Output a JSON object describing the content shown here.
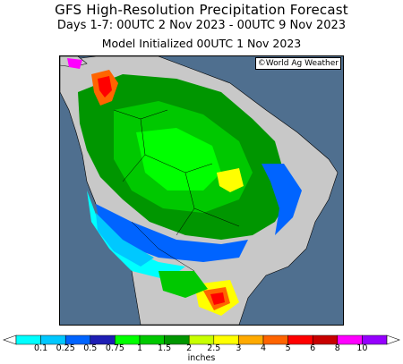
{
  "header": {
    "title": "GFS High-Resolution Precipitation Forecast",
    "subtitle": "Days 1-7: 00UTC 2 Nov 2023 - 00UTC 9 Nov 2023",
    "init": "Model Initialized 00UTC 1 Nov 2023"
  },
  "map": {
    "credit": "©World Ag Weather",
    "ocean_color": "#4f6f8f",
    "land_dry_color": "#c8c8c8",
    "border_color": "#000000"
  },
  "legend": {
    "units": "inches",
    "ticks": [
      "0.1",
      "0.25",
      "0.5",
      "0.75",
      "1",
      "1.5",
      "2",
      "2.5",
      "3",
      "4",
      "5",
      "6",
      "8",
      "10"
    ],
    "colors": [
      "#00ffff",
      "#00c8ff",
      "#0064ff",
      "#1e1eb4",
      "#00ff00",
      "#00c800",
      "#009600",
      "#c8ff00",
      "#ffff00",
      "#ffaa00",
      "#ff6400",
      "#ff0000",
      "#c80000",
      "#ff00ff",
      "#9600ff"
    ]
  }
}
